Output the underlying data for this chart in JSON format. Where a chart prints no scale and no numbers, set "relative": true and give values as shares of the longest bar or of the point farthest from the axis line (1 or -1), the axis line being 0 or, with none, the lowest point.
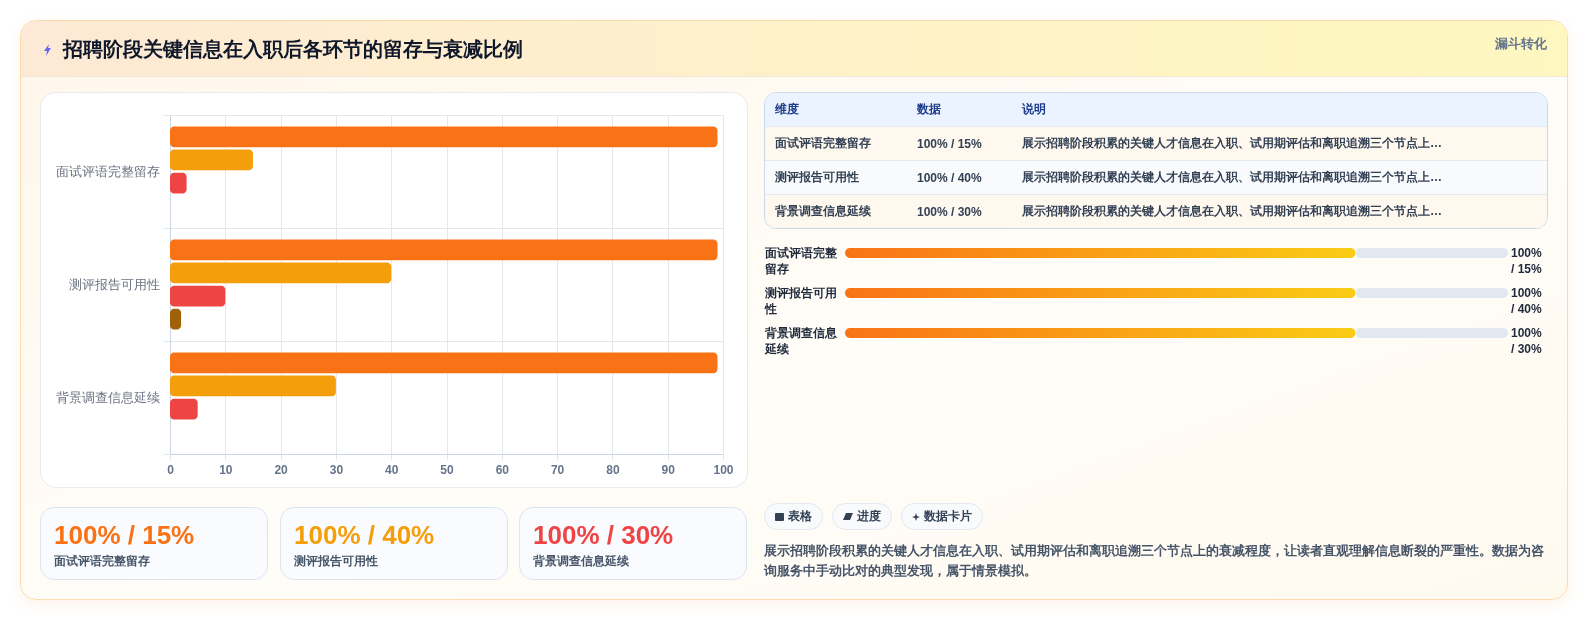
{
  "chart_data": [
    {
      "type": "bar",
      "title": "招聘阶段关键信息在入职后各环节的留存与衰减比例",
      "annotations": [
        "漏斗转化"
      ],
      "orientation": "horizontal",
      "categories": [
        "面试评语完整留存",
        "测评报告可用性",
        "背景调查信息延续"
      ],
      "series": [
        {
          "color": "#f97316",
          "values": [
            99,
            99,
            99
          ]
        },
        {
          "color": "#f59e0b",
          "values": [
            15,
            40,
            30
          ]
        },
        {
          "color": "#ef4444",
          "values": [
            3,
            10,
            5
          ]
        },
        {
          "color": "#a16207",
          "values": [
            null,
            2,
            null
          ]
        }
      ],
      "xlim": [
        0,
        100
      ],
      "xticks": [
        0,
        10,
        20,
        30,
        40,
        50,
        60,
        70,
        80,
        90,
        100
      ],
      "grid": true
    },
    {
      "type": "other",
      "categories": [
        "维度",
        "数据",
        "说明"
      ],
      "annotations": [
        "面试评语完整留存",
        "100% / 15%",
        "展示招聘阶段积累的关键人才信息在入职、试用期评估和离职追溯三个节点上…",
        "测评报告可用性",
        "100% / 40%",
        "展示招聘阶段积累的关键人才信息在入职、试用期评估和离职追溯三个节点上…",
        "背景调查信息延续",
        "100% / 30%",
        "展示招聘阶段积累的关键人才信息在入职、试用期评估和离职追溯三个节点上…"
      ]
    },
    {
      "type": "bar",
      "orientation": "horizontal",
      "stacked": true,
      "relative": true,
      "categories": [
        "面试评语完整留存",
        "测评报告可用性",
        "背景调查信息延续"
      ],
      "series": [
        {
          "color": "#f97316",
          "values": [
            0.77,
            0.77,
            0.77
          ]
        },
        {
          "color": "#e2e8f0",
          "values": [
            0.23,
            0.23,
            0.23
          ]
        }
      ],
      "annotations": [
        "100% / 15%",
        "100% / 40%",
        "100% / 30%"
      ]
    },
    {
      "type": "other",
      "categories": [
        "面试评语完整留存",
        "测评报告可用性",
        "背景调查信息延续"
      ],
      "annotations": [
        "100% / 15%",
        "100% / 40%",
        "100% / 30%"
      ]
    },
    {
      "type": "other",
      "categories": [
        "表格",
        "进度",
        "数据卡片"
      ],
      "annotations": [
        "展示招聘阶段积累的关键人才信息在入职、试用期评估和离职追溯三个节点上的衰减程度，让读者直观理解信息断裂的严重性。数据为咨询服务中手动比对的典型发现，属于情景模拟。"
      ]
    }
  ]
}
